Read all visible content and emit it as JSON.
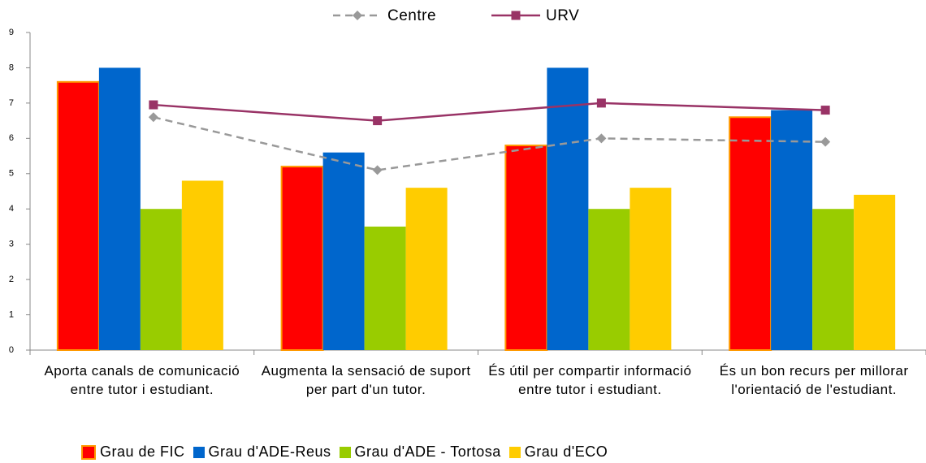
{
  "chart_data": {
    "type": "bar",
    "categories": [
      "Aporta canals de comunicació entre tutor i estudiant.",
      "Augmenta la sensació de suport per part d'un tutor.",
      "És útil per compartir informació entre tutor i estudiant.",
      "És un bon recurs per millorar l'orientació de l'estudiant."
    ],
    "series": [
      {
        "name": "Grau de FIC",
        "color": "#ff0000",
        "stroke": "#ff9900",
        "values": [
          7.6,
          5.2,
          5.8,
          6.6
        ]
      },
      {
        "name": "Grau d'ADE-Reus",
        "color": "#0066cc",
        "values": [
          8,
          5.6,
          8,
          6.8
        ]
      },
      {
        "name": "Grau d'ADE - Tortosa",
        "color": "#99cc00",
        "values": [
          4,
          3.5,
          4,
          4
        ]
      },
      {
        "name": "Grau d'ECO",
        "color": "#ffcc00",
        "values": [
          4.8,
          4.6,
          4.6,
          4.4
        ]
      }
    ],
    "line_series": [
      {
        "name": "Centre",
        "color": "#999999",
        "dashed": true,
        "marker": "diamond",
        "values": [
          6.6,
          5.1,
          6.0,
          5.9
        ]
      },
      {
        "name": "URV",
        "color": "#993366",
        "dashed": false,
        "marker": "square",
        "values": [
          6.95,
          6.5,
          7.0,
          6.8
        ]
      }
    ],
    "ylim": [
      0,
      9
    ],
    "yticks": [
      0,
      1,
      2,
      3,
      4,
      5,
      6,
      7,
      8,
      9
    ],
    "grid": false
  }
}
